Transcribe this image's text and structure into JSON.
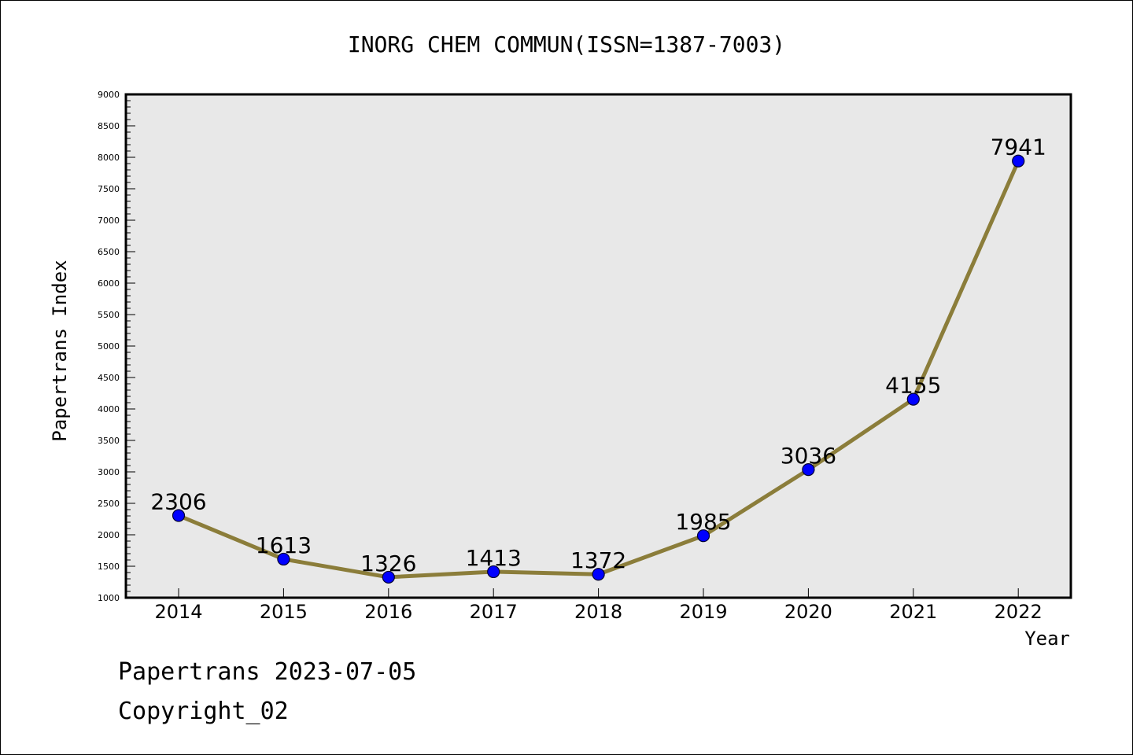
{
  "chart_data": {
    "type": "line",
    "title": "INORG CHEM COMMUN(ISSN=1387-7003)",
    "xlabel": "Year",
    "ylabel": "Papertrans Index",
    "x": [
      "2014",
      "2015",
      "2016",
      "2017",
      "2018",
      "2019",
      "2020",
      "2021",
      "2022"
    ],
    "series": [
      {
        "values": [
          2306,
          1613,
          1326,
          1413,
          1372,
          1985,
          3036,
          4155,
          7941
        ],
        "data_labels": [
          "2306",
          "1613",
          "1326",
          "1413",
          "1372",
          "1985",
          "3036",
          "4155",
          "7941"
        ]
      }
    ],
    "ylim": [
      1000,
      9000
    ],
    "yticks": [
      "1000",
      "1500",
      "2000",
      "2500",
      "3000",
      "3500",
      "4000",
      "4500",
      "5000",
      "5500",
      "6000",
      "6500",
      "7000",
      "7500",
      "8000",
      "8500",
      "9000"
    ],
    "grid": false,
    "legend": "none",
    "colors": {
      "line": "#8b7d3a",
      "marker_fill": "#0000ff",
      "marker_stroke": "#000033",
      "plot_background": "#e8e8e8",
      "axis": "#000000"
    }
  },
  "footer": {
    "date_line": "Papertrans 2023-07-05",
    "copyright_line": "Copyright_02"
  }
}
